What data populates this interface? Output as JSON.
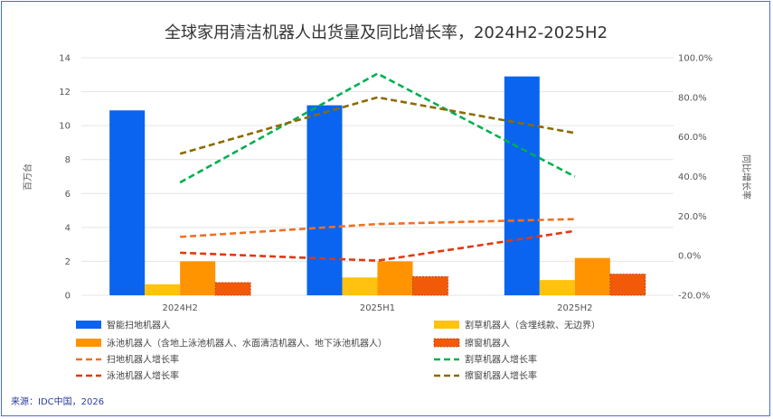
{
  "chart_data": {
    "type": "bar+line",
    "title": "全球家用清洁机器人出货量及同比增长率，2024H2-2025H2",
    "categories": [
      "2024H2",
      "2025H1",
      "2025H2"
    ],
    "ylabel_left": "百万台",
    "ylabel_right": "同比增长率",
    "ylim_left": [
      0,
      14
    ],
    "yticks_left": [
      "0",
      "2",
      "4",
      "6",
      "8",
      "10",
      "12",
      "14"
    ],
    "ylim_right": [
      -20,
      100
    ],
    "yticks_right": [
      "-20.0%",
      "0.0%",
      "20.0%",
      "40.0%",
      "60.0%",
      "80.0%",
      "100.0%"
    ],
    "bar_series": [
      {
        "name": "智能扫地机器人",
        "color": "#0a64f0",
        "values": [
          10.9,
          11.2,
          12.9
        ]
      },
      {
        "name": "割草机器人（含埋线款、无边界）",
        "color": "#ffc20e",
        "values": [
          0.65,
          1.05,
          0.9
        ]
      },
      {
        "name": "泳池机器人（含地上泳池机器人、水面清洁机器人、地下泳池机器人）",
        "color": "#ff9300",
        "values": [
          2.0,
          2.0,
          2.2
        ]
      },
      {
        "name": "擦窗机器人",
        "color": "#f25a0a",
        "values": [
          0.75,
          1.1,
          1.25
        ]
      }
    ],
    "line_series": [
      {
        "name": "扫地机器人增长率",
        "color": "#f07022",
        "values": [
          9.5,
          16.0,
          18.5
        ]
      },
      {
        "name": "割草机器人增长率",
        "color": "#00b050",
        "values": [
          37.0,
          92.0,
          40.0
        ]
      },
      {
        "name": "泳池机器人增长率",
        "color": "#e03a10",
        "values": [
          1.5,
          -2.5,
          12.5
        ]
      },
      {
        "name": "擦窗机器人增长率",
        "color": "#8b6b00",
        "values": [
          51.5,
          80.0,
          62.0
        ]
      }
    ],
    "source": "来源：IDC中国，2026"
  }
}
